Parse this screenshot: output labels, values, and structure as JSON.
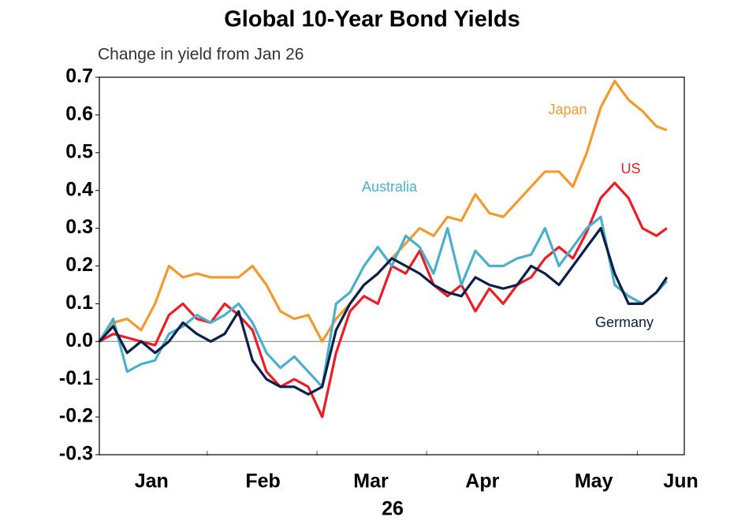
{
  "chart_data": {
    "type": "line",
    "title": "Global 10-Year Bond Yields",
    "subtitle": "Change in yield from Jan 26",
    "xlabel": "26",
    "x": [
      0,
      4,
      8,
      12,
      16,
      20,
      24,
      28,
      32,
      36,
      40,
      44,
      48,
      52,
      56,
      60,
      64,
      68,
      72,
      76,
      80,
      84,
      88,
      92,
      96,
      100,
      104,
      108,
      112,
      116,
      120,
      124,
      128,
      132,
      136,
      140,
      144,
      148,
      152,
      156,
      160,
      163
    ],
    "series": [
      {
        "name": "Japan",
        "color": "#f39a2e",
        "values": [
          0,
          0.05,
          0.06,
          0.03,
          0.1,
          0.2,
          0.17,
          0.18,
          0.17,
          0.17,
          0.17,
          0.2,
          0.15,
          0.08,
          0.06,
          0.07,
          0.0,
          0.06,
          0.1,
          0.15,
          0.18,
          0.22,
          0.26,
          0.3,
          0.28,
          0.33,
          0.32,
          0.39,
          0.34,
          0.33,
          0.37,
          0.41,
          0.45,
          0.45,
          0.41,
          0.5,
          0.62,
          0.69,
          0.64,
          0.61,
          0.57,
          0.56
        ]
      },
      {
        "name": "US",
        "color": "#ee1c25",
        "values": [
          0,
          0.02,
          0.01,
          0.0,
          -0.01,
          0.07,
          0.1,
          0.06,
          0.05,
          0.1,
          0.07,
          0.03,
          -0.08,
          -0.12,
          -0.1,
          -0.12,
          -0.2,
          -0.03,
          0.08,
          0.12,
          0.1,
          0.2,
          0.18,
          0.24,
          0.15,
          0.12,
          0.15,
          0.08,
          0.14,
          0.1,
          0.15,
          0.17,
          0.22,
          0.25,
          0.22,
          0.29,
          0.38,
          0.42,
          0.38,
          0.3,
          0.28,
          0.3
        ]
      },
      {
        "name": "Australia",
        "color": "#4bb0cc",
        "values": [
          0,
          0.06,
          -0.08,
          -0.06,
          -0.05,
          0.02,
          0.04,
          0.07,
          0.05,
          0.07,
          0.1,
          0.05,
          -0.03,
          -0.07,
          -0.04,
          -0.08,
          -0.12,
          0.1,
          0.13,
          0.2,
          0.25,
          0.2,
          0.28,
          0.25,
          0.18,
          0.3,
          0.15,
          0.24,
          0.2,
          0.2,
          0.22,
          0.23,
          0.3,
          0.2,
          0.25,
          0.3,
          0.33,
          0.15,
          0.12,
          0.1,
          0.13,
          0.16
        ]
      },
      {
        "name": "Germany",
        "color": "#0c1f4a",
        "values": [
          0,
          0.04,
          -0.03,
          0.0,
          -0.03,
          0.0,
          0.05,
          0.02,
          0.0,
          0.02,
          0.08,
          -0.05,
          -0.1,
          -0.12,
          -0.12,
          -0.14,
          -0.12,
          0.03,
          0.1,
          0.15,
          0.18,
          0.22,
          0.2,
          0.18,
          0.15,
          0.13,
          0.12,
          0.17,
          0.15,
          0.14,
          0.15,
          0.2,
          0.18,
          0.15,
          0.2,
          0.25,
          0.3,
          0.18,
          0.1,
          0.1,
          0.13,
          0.17
        ]
      }
    ],
    "xlim": [
      0,
      168
    ],
    "xticks": [
      {
        "value": 15,
        "label": "Jan"
      },
      {
        "value": 47,
        "label": "Feb"
      },
      {
        "value": 78,
        "label": "Mar"
      },
      {
        "value": 110,
        "label": "Apr"
      },
      {
        "value": 142,
        "label": "May"
      },
      {
        "value": 167,
        "label": "Jun"
      }
    ],
    "ylim": [
      -0.3,
      0.7
    ],
    "yticks": [
      -0.3,
      -0.2,
      -0.1,
      {
        "value": 0,
        "label": "0.0"
      },
      0.1,
      0.2,
      0.3,
      0.4,
      0.5,
      0.6,
      0.7
    ]
  }
}
